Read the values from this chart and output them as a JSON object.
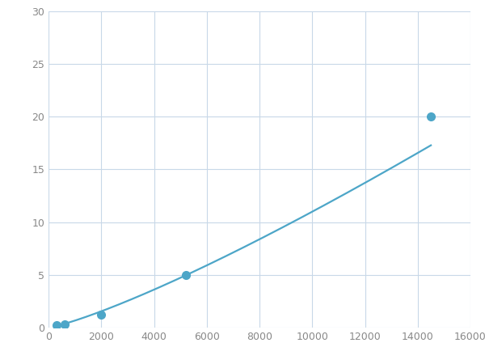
{
  "x_points": [
    300,
    600,
    2000,
    5200,
    14500
  ],
  "y_points": [
    0.2,
    0.3,
    1.2,
    5.0,
    20.0
  ],
  "line_color": "#4da6c8",
  "marker_color": "#4da6c8",
  "marker_size": 7,
  "line_width": 1.6,
  "xlim": [
    0,
    16000
  ],
  "ylim": [
    0,
    30
  ],
  "xticks": [
    0,
    2000,
    4000,
    6000,
    8000,
    10000,
    12000,
    14000,
    16000
  ],
  "yticks": [
    0,
    5,
    10,
    15,
    20,
    25,
    30
  ],
  "grid_color": "#c8d8e8",
  "background_color": "#ffffff",
  "figsize": [
    6.0,
    4.5
  ],
  "dpi": 100
}
